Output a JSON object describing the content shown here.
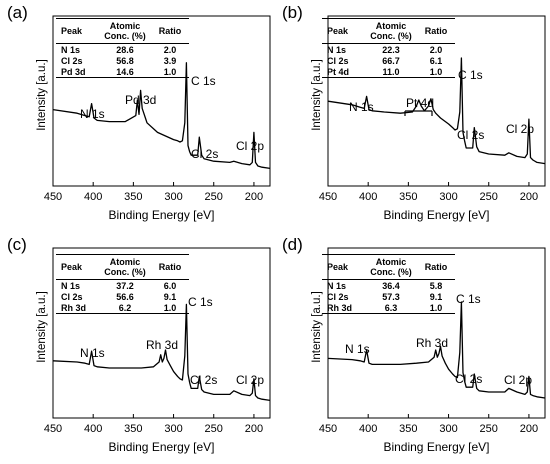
{
  "chart_data": [
    {
      "panel_label": "(a)",
      "type": "line",
      "xlabel": "Binding Energy [eV]",
      "ylabel": "Intensity [a.u.]",
      "xlim": [
        450,
        180
      ],
      "xticks": [
        450,
        400,
        350,
        300,
        250,
        200
      ],
      "x": [
        450,
        420,
        410,
        405,
        402,
        399,
        395,
        380,
        360,
        347,
        345,
        343,
        341,
        339,
        337,
        335,
        333,
        320,
        300,
        295,
        292,
        289,
        286,
        284,
        282,
        280,
        278,
        270,
        268,
        265,
        262,
        250,
        230,
        225,
        215,
        205,
        202,
        200,
        198,
        195,
        190,
        180
      ],
      "y": [
        0.47,
        0.44,
        0.42,
        0.41,
        0.52,
        0.4,
        0.38,
        0.37,
        0.37,
        0.42,
        0.55,
        0.43,
        0.63,
        0.48,
        0.44,
        0.4,
        0.36,
        0.28,
        0.22,
        0.21,
        0.2,
        0.21,
        0.36,
        0.86,
        0.17,
        0.12,
        0.09,
        0.09,
        0.24,
        0.09,
        0.06,
        0.04,
        0.03,
        0.04,
        0.02,
        0.01,
        0.03,
        0.28,
        0.03,
        0.0,
        -0.01,
        -0.02
      ],
      "annotations": [
        {
          "text": "N 1s",
          "x": 402
        },
        {
          "text": "Pd 3d",
          "x": 340
        },
        {
          "text": "C 1s",
          "x": 284
        },
        {
          "text": "Cl 2s",
          "x": 268
        },
        {
          "text": "Cl 2p",
          "x": 200
        }
      ],
      "table": {
        "headers": [
          "Peak",
          "Atomic Conc. (%)",
          "Ratio"
        ],
        "rows": [
          [
            "N 1s",
            "28.6",
            "2.0"
          ],
          [
            "Cl 2s",
            "56.8",
            "3.9"
          ],
          [
            "Pd 3d",
            "14.6",
            "1.0"
          ]
        ]
      }
    },
    {
      "panel_label": "(b)",
      "type": "line",
      "xlabel": "Binding Energy [eV]",
      "ylabel": "Intensity [a.u.]",
      "xlim": [
        450,
        180
      ],
      "xticks": [
        450,
        400,
        350,
        300,
        250,
        200
      ],
      "x": [
        450,
        420,
        410,
        405,
        402,
        399,
        395,
        380,
        360,
        345,
        340,
        337,
        334,
        330,
        325,
        322,
        319,
        316,
        310,
        300,
        295,
        292,
        289,
        286,
        284,
        282,
        280,
        278,
        270,
        268,
        265,
        262,
        250,
        230,
        225,
        215,
        205,
        202,
        200,
        198,
        195,
        190,
        180
      ],
      "y": [
        0.54,
        0.51,
        0.49,
        0.48,
        0.58,
        0.47,
        0.46,
        0.45,
        0.44,
        0.45,
        0.5,
        0.55,
        0.5,
        0.46,
        0.5,
        0.56,
        0.47,
        0.44,
        0.4,
        0.35,
        0.32,
        0.3,
        0.31,
        0.45,
        0.9,
        0.28,
        0.21,
        0.15,
        0.15,
        0.32,
        0.16,
        0.12,
        0.1,
        0.09,
        0.11,
        0.08,
        0.07,
        0.1,
        0.39,
        0.07,
        0.05,
        0.03,
        0.02
      ],
      "annotations": [
        {
          "text": "N 1s",
          "x": 402
        },
        {
          "text": "Pt 4d",
          "x": 330
        },
        {
          "text": "C 1s",
          "x": 284
        },
        {
          "text": "Cl 2s",
          "x": 268
        },
        {
          "text": "Cl 2p",
          "x": 200
        }
      ],
      "table": {
        "headers": [
          "Peak",
          "Atomic Conc. (%)",
          "Ratio"
        ],
        "rows": [
          [
            "N 1s",
            "22.3",
            "2.0"
          ],
          [
            "Cl 2s",
            "66.7",
            "6.1"
          ],
          [
            "Pt 4d",
            "11.0",
            "1.0"
          ]
        ]
      }
    },
    {
      "panel_label": "(c)",
      "type": "line",
      "xlabel": "Binding Energy [eV]",
      "ylabel": "Intensity [a.u.]",
      "xlim": [
        450,
        180
      ],
      "xticks": [
        450,
        400,
        350,
        300,
        250,
        200
      ],
      "x": [
        450,
        420,
        410,
        405,
        402,
        399,
        395,
        380,
        360,
        340,
        325,
        318,
        316,
        314,
        312,
        310,
        308,
        304,
        300,
        295,
        292,
        289,
        286,
        284,
        282,
        280,
        278,
        270,
        268,
        265,
        262,
        250,
        230,
        225,
        215,
        205,
        202,
        200,
        198,
        195,
        190,
        180
      ],
      "y": [
        0.31,
        0.3,
        0.29,
        0.28,
        0.39,
        0.27,
        0.26,
        0.25,
        0.25,
        0.25,
        0.26,
        0.3,
        0.36,
        0.3,
        0.33,
        0.4,
        0.32,
        0.27,
        0.22,
        0.18,
        0.16,
        0.15,
        0.35,
        0.78,
        0.2,
        0.13,
        0.08,
        0.08,
        0.18,
        0.07,
        0.05,
        0.03,
        0.03,
        0.06,
        0.03,
        0.02,
        0.04,
        0.16,
        0.02,
        0.0,
        -0.01,
        -0.02
      ],
      "annotations": [
        {
          "text": "N 1s",
          "x": 402
        },
        {
          "text": "Rh 3d",
          "x": 310
        },
        {
          "text": "C 1s",
          "x": 284
        },
        {
          "text": "Cl 2s",
          "x": 268
        },
        {
          "text": "Cl 2p",
          "x": 200
        }
      ],
      "table": {
        "headers": [
          "Peak",
          "Atomic Conc. (%)",
          "Ratio"
        ],
        "rows": [
          [
            "N 1s",
            "37.2",
            "6.0"
          ],
          [
            "Cl 2s",
            "56.6",
            "9.1"
          ],
          [
            "Rh 3d",
            "6.2",
            "1.0"
          ]
        ]
      }
    },
    {
      "panel_label": "(d)",
      "type": "line",
      "xlabel": "Binding Energy [eV]",
      "ylabel": "Intensity [a.u.]",
      "xlim": [
        450,
        180
      ],
      "xticks": [
        450,
        400,
        350,
        300,
        250,
        200
      ],
      "x": [
        450,
        420,
        410,
        405,
        402,
        399,
        395,
        380,
        360,
        340,
        325,
        318,
        316,
        314,
        312,
        310,
        308,
        304,
        300,
        295,
        292,
        289,
        286,
        284,
        282,
        280,
        278,
        270,
        268,
        265,
        262,
        250,
        230,
        225,
        215,
        205,
        202,
        200,
        198,
        195,
        190,
        180
      ],
      "y": [
        0.33,
        0.32,
        0.31,
        0.3,
        0.4,
        0.29,
        0.28,
        0.28,
        0.28,
        0.29,
        0.3,
        0.34,
        0.4,
        0.34,
        0.37,
        0.43,
        0.35,
        0.29,
        0.24,
        0.2,
        0.18,
        0.17,
        0.38,
        0.8,
        0.21,
        0.14,
        0.09,
        0.09,
        0.2,
        0.08,
        0.06,
        0.05,
        0.05,
        0.08,
        0.05,
        0.03,
        0.05,
        0.18,
        0.03,
        0.02,
        0.01,
        0.0
      ],
      "annotations": [
        {
          "text": "N 1s",
          "x": 402
        },
        {
          "text": "Rh 3d",
          "x": 310
        },
        {
          "text": "C 1s",
          "x": 284
        },
        {
          "text": "Cl 2s",
          "x": 268
        },
        {
          "text": "Cl 2p",
          "x": 200
        }
      ],
      "table": {
        "headers": [
          "Peak",
          "Atomic Conc. (%)",
          "Ratio"
        ],
        "rows": [
          [
            "N 1s",
            "36.4",
            "5.8"
          ],
          [
            "Cl 2s",
            "57.3",
            "9.1"
          ],
          [
            "Rh 3d",
            "6.3",
            "1.0"
          ]
        ]
      }
    }
  ]
}
